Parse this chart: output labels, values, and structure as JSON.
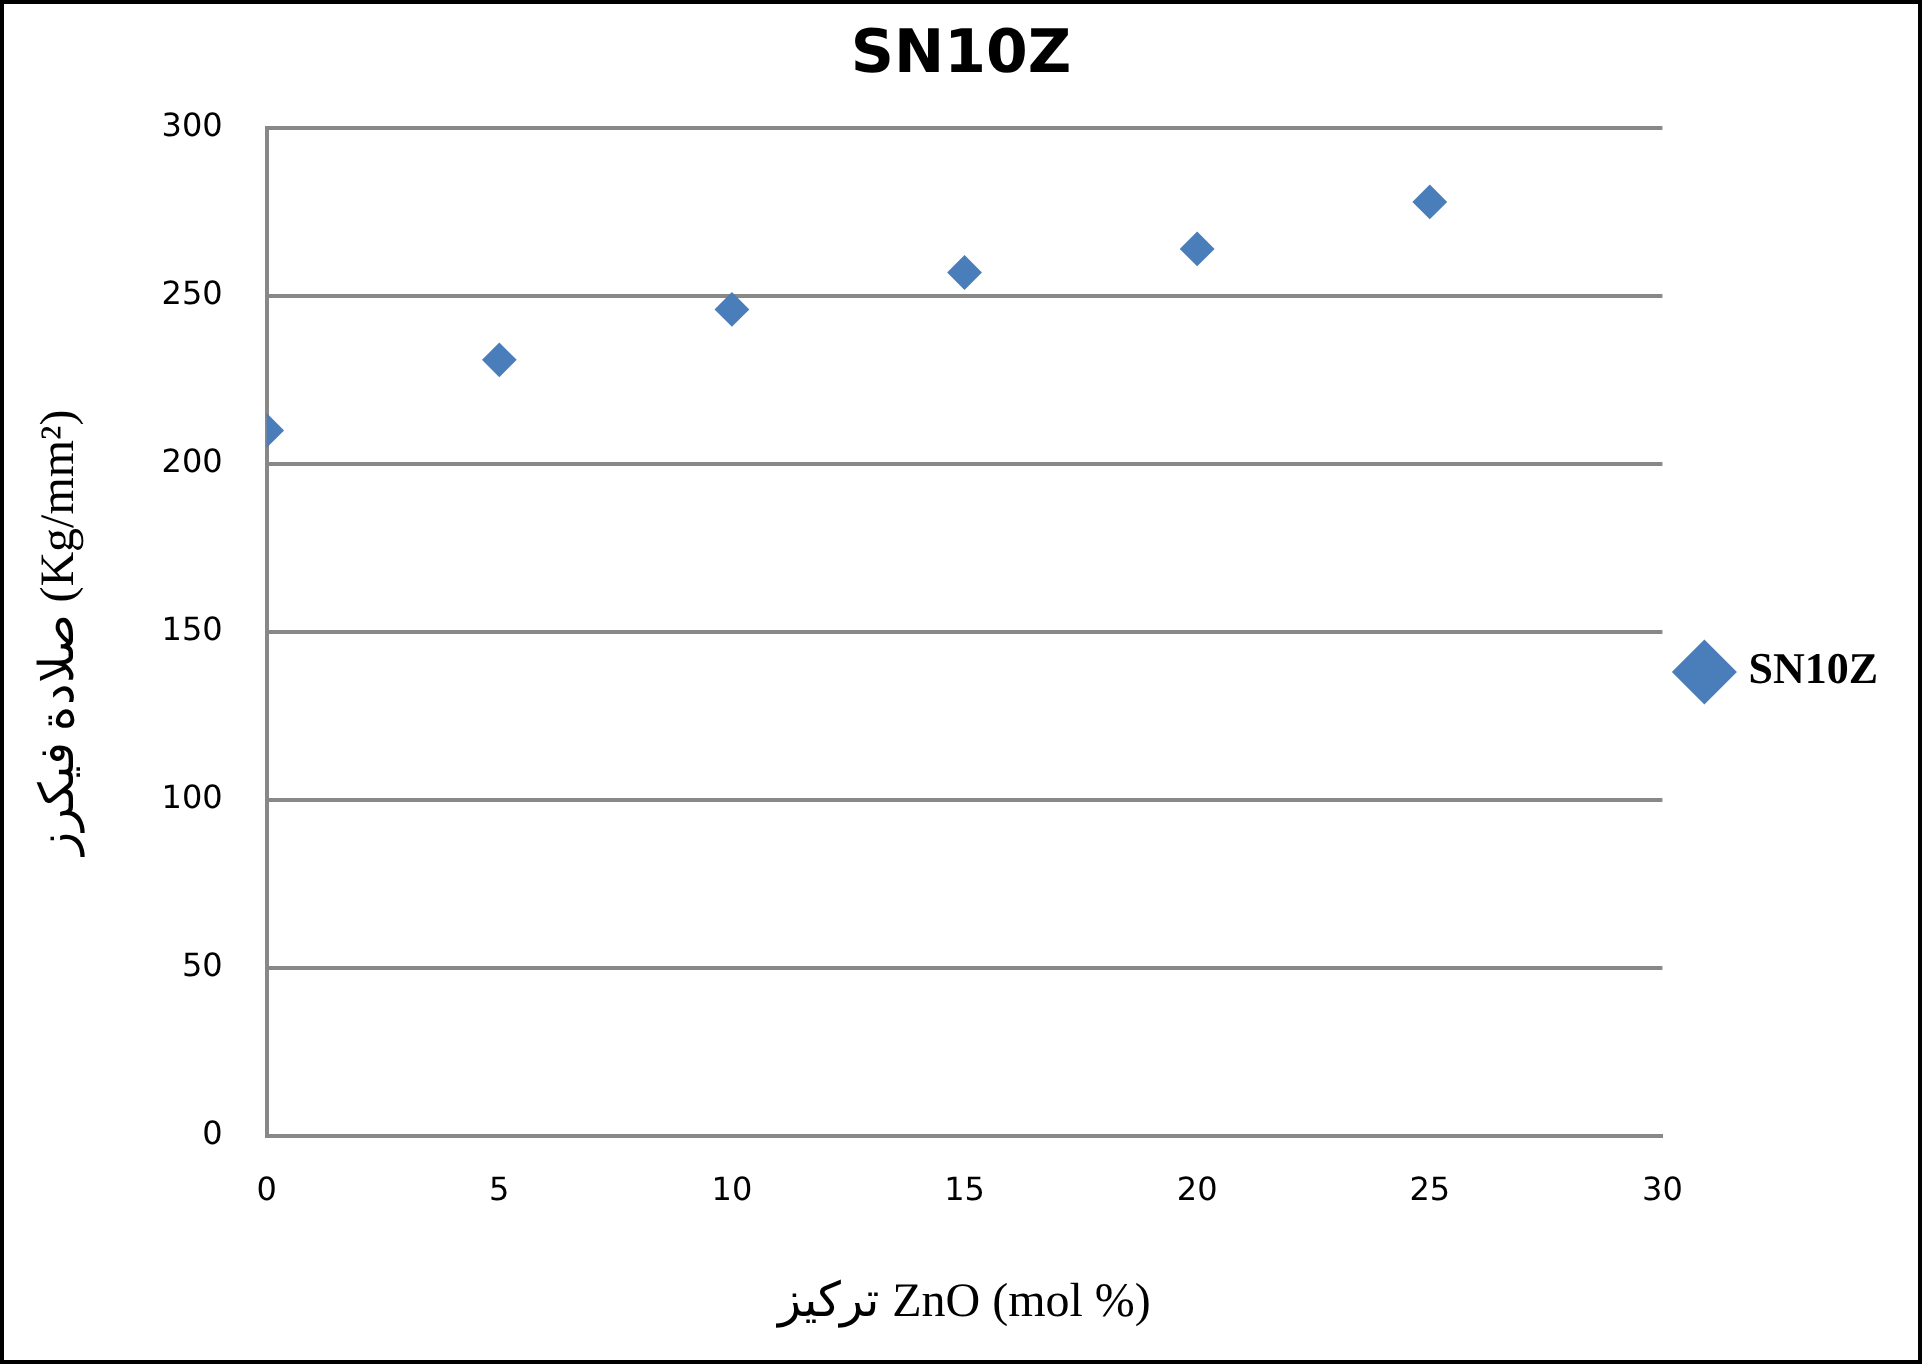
{
  "chart_data": {
    "type": "scatter",
    "title": "SN10Z",
    "xlabel": "تركيز ZnO (mol %)",
    "ylabel": "صلادة فيكرز (Kg/mm²)",
    "x": [
      0,
      5,
      10,
      15,
      20,
      25
    ],
    "series": [
      {
        "name": "SN10Z",
        "color": "#4a7ebb",
        "values": [
          210,
          231,
          246,
          257,
          264,
          278
        ]
      }
    ],
    "xlim": [
      0,
      30
    ],
    "xticks": [
      0,
      5,
      10,
      15,
      20,
      25,
      30
    ],
    "ylim": [
      0,
      300
    ],
    "yticks": [
      0,
      50,
      100,
      150,
      200,
      250,
      300
    ],
    "grid": "y",
    "legend": "right",
    "marker": "diamond"
  }
}
